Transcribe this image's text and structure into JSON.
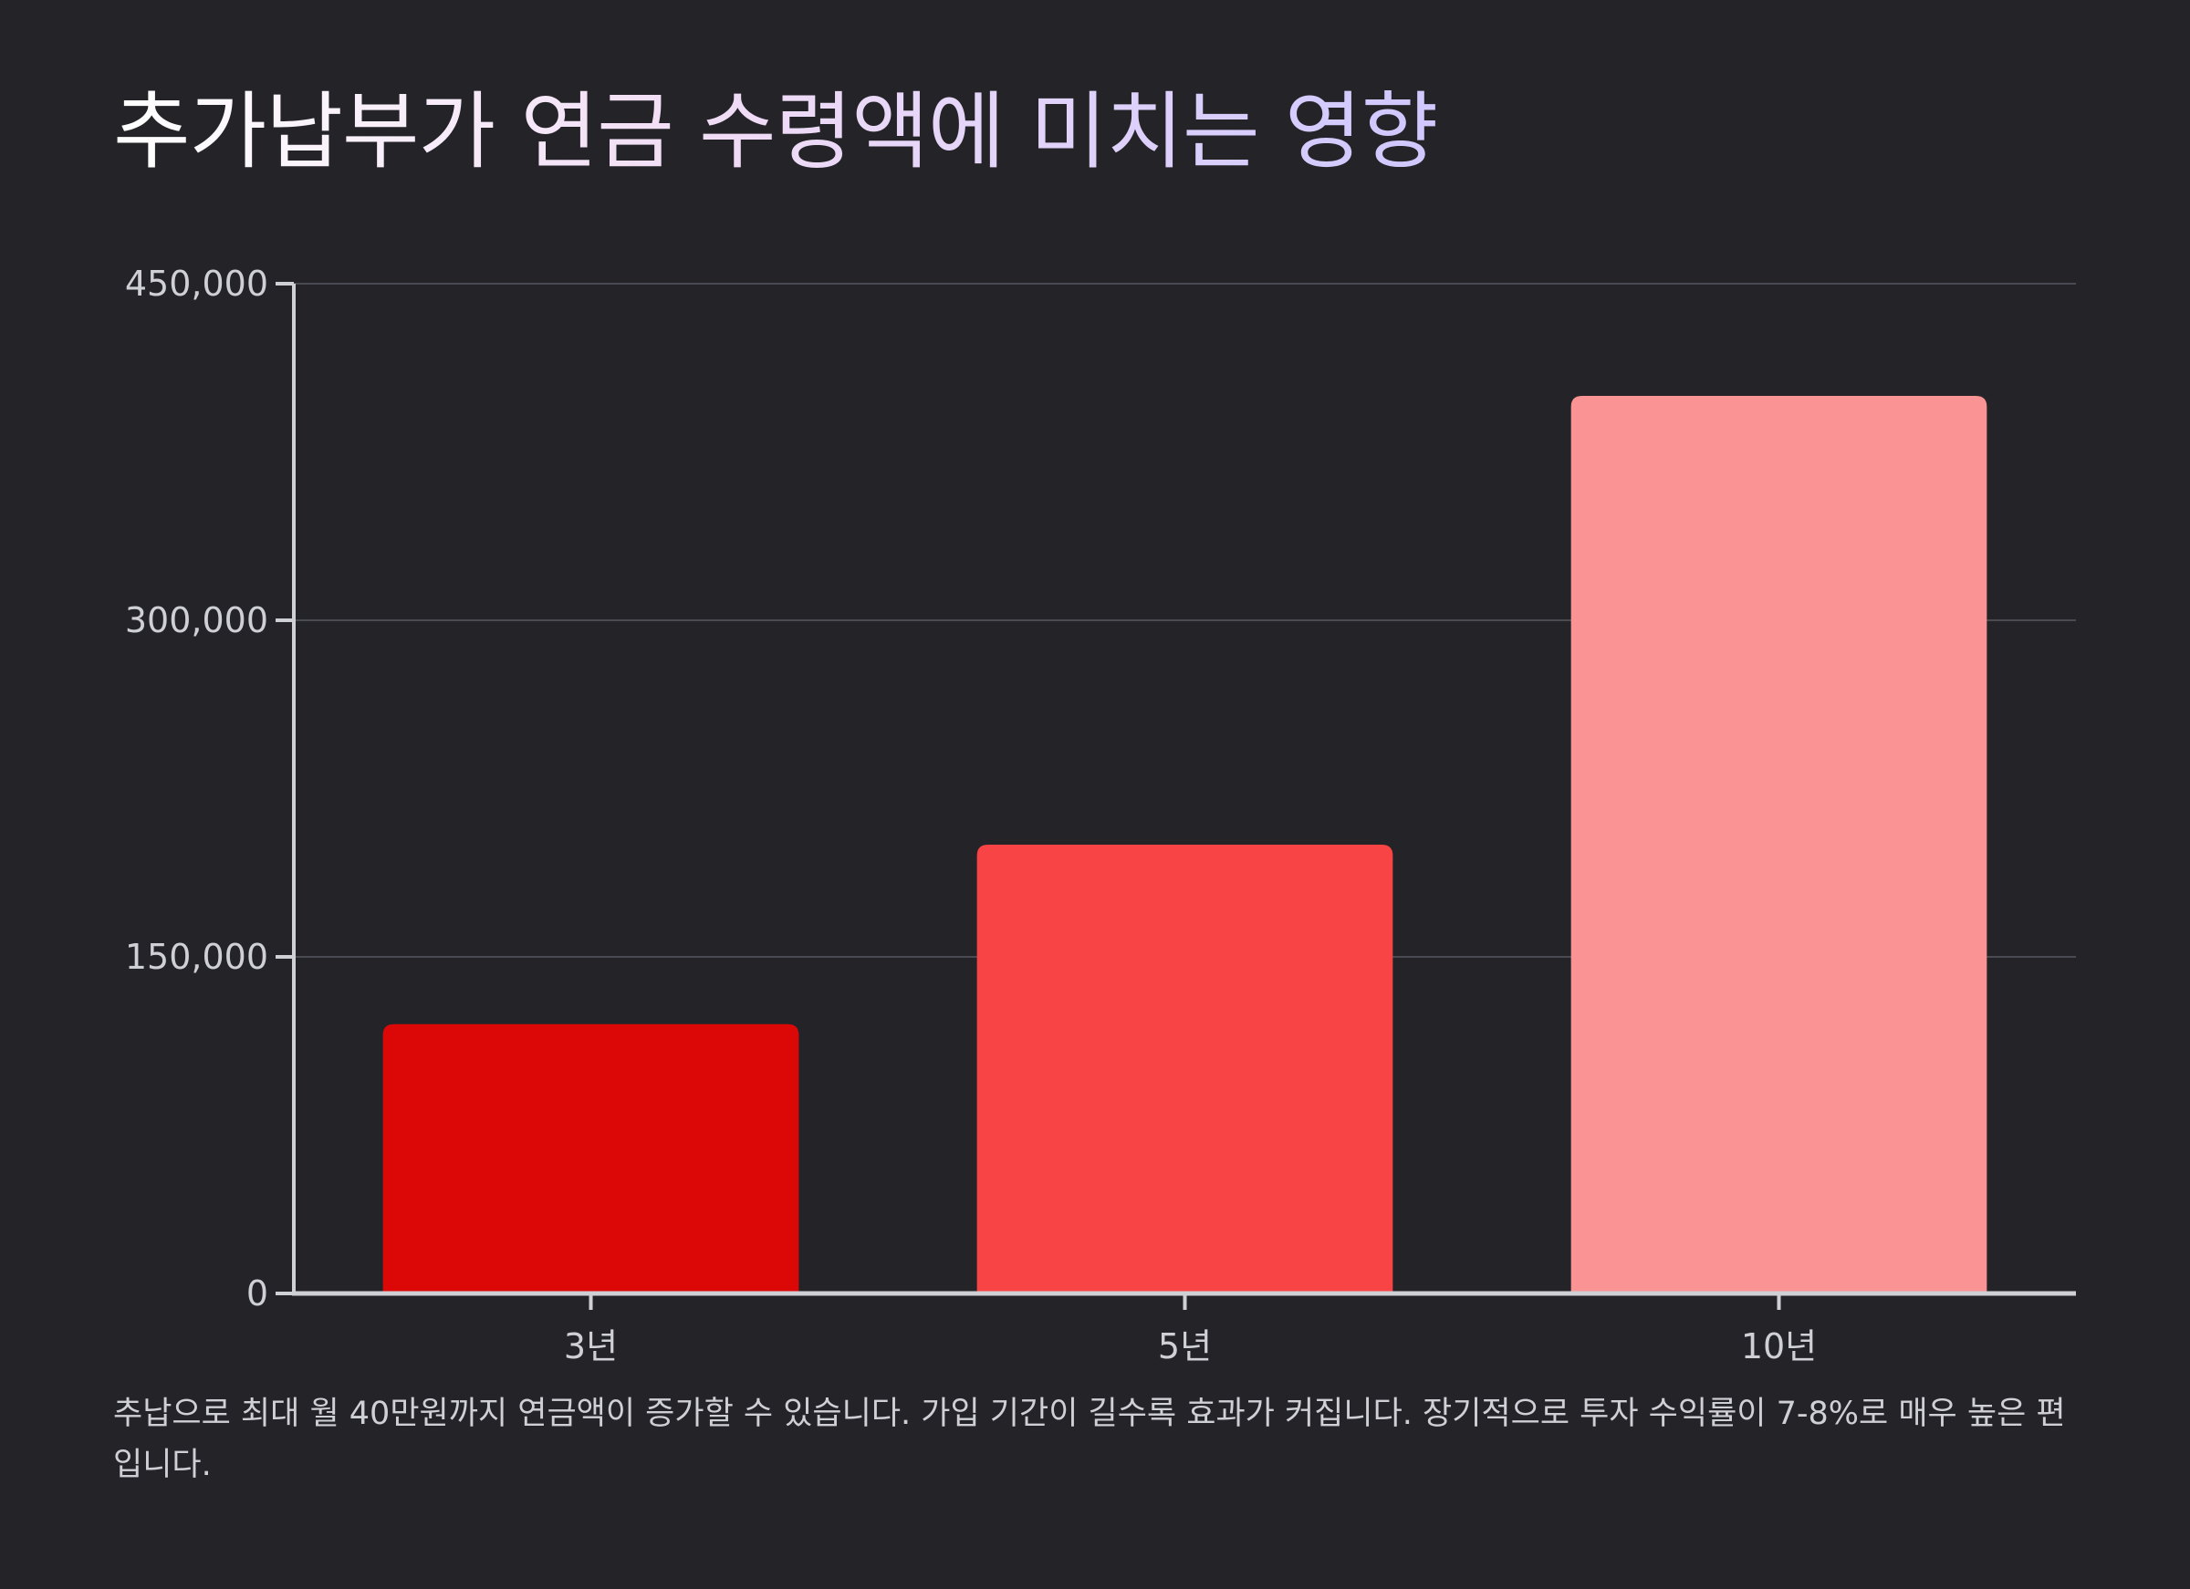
{
  "title": "추가납부가 연금 수령액에 미치는 영향",
  "footnote": "추납으로 최대 월 40만원까지 연금액이 증가할 수 있습니다. 가입 기간이 길수록 효과가 커집니다. 장기적으로 투자 수익률이 7-8%로 매우 높은 편입니다.",
  "chart_data": {
    "type": "bar",
    "title": "추가납부가 연금 수령액에 미치는 영향",
    "xlabel": "",
    "ylabel": "",
    "categories": [
      "3년",
      "5년",
      "10년"
    ],
    "values": [
      120000,
      200000,
      400000
    ],
    "colors": [
      "#dc0808",
      "#f84444",
      "#fa9393"
    ],
    "ylim": [
      0,
      450000
    ],
    "yticks": [
      0,
      150000,
      300000,
      450000
    ],
    "ytick_labels": [
      "0",
      "150,000",
      "300,000",
      "450,000"
    ],
    "grid": true,
    "legend": "none"
  }
}
